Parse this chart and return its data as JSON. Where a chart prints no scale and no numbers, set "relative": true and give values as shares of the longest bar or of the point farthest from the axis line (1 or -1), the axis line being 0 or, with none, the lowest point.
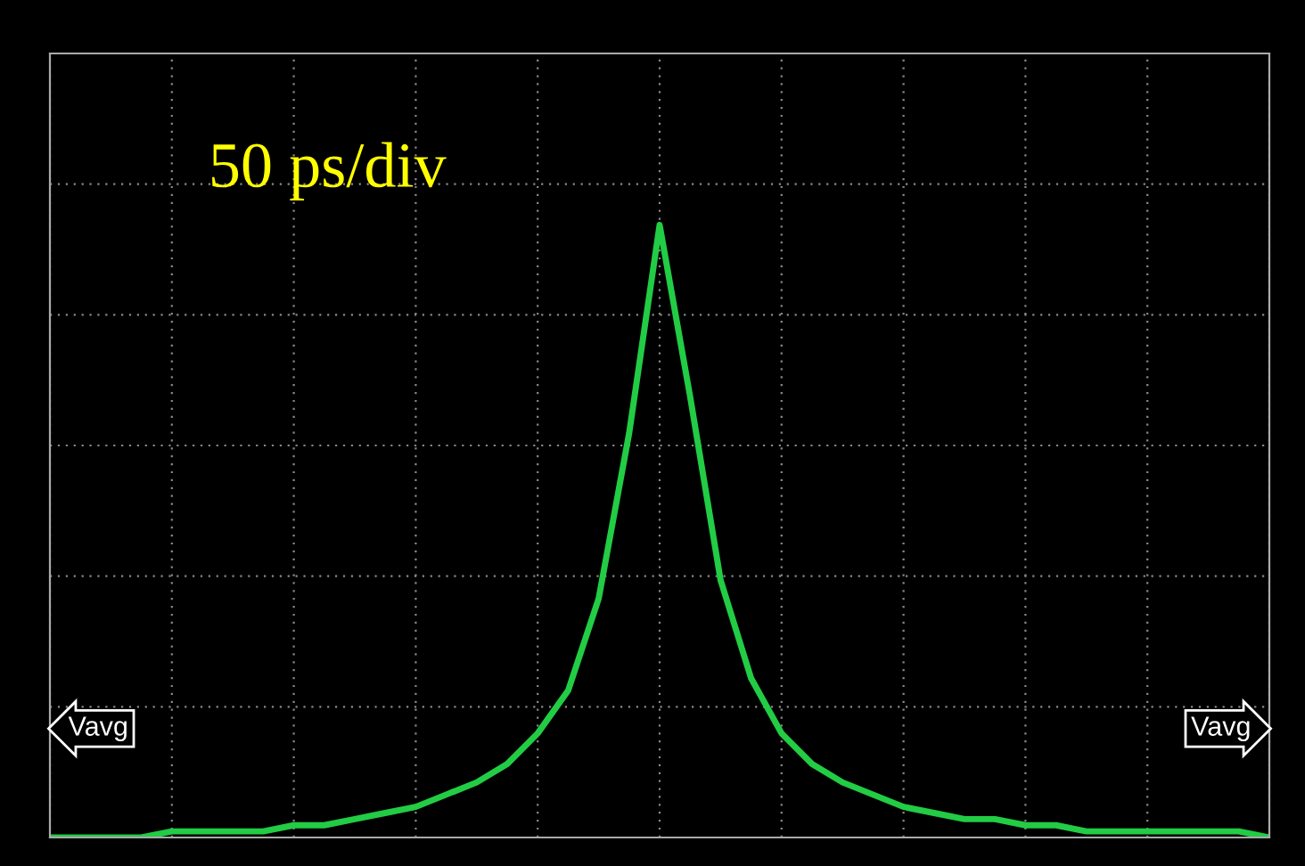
{
  "chart_data": {
    "type": "line",
    "relative": true,
    "grid": true,
    "marker": "none",
    "line_style": "solid",
    "categories": [
      null,
      null,
      null,
      null,
      null,
      null,
      null,
      null,
      null,
      null,
      null,
      null,
      null,
      null,
      null,
      null,
      null,
      null,
      null,
      null,
      null,
      null,
      null,
      null,
      null,
      null,
      null,
      null,
      null,
      null,
      null,
      null,
      null,
      null,
      null,
      null,
      null,
      null,
      null,
      null,
      null
    ],
    "series": [
      {
        "color": "#22cc44",
        "values": [
          0,
          0,
          0,
          0,
          0.01,
          0.01,
          0.01,
          0.01,
          0.02,
          0.02,
          0.03,
          0.04,
          0.05,
          0.07,
          0.09,
          0.12,
          0.17,
          0.24,
          0.39,
          0.66,
          1,
          0.72,
          0.42,
          0.26,
          0.17,
          0.12,
          0.09,
          0.07,
          0.05,
          0.04,
          0.03,
          0.03,
          0.02,
          0.02,
          0.01,
          0.01,
          0.01,
          0.01,
          0.01,
          0.01,
          0
        ]
      }
    ],
    "annotations": [
      "50 ps/div",
      "Vavg",
      "Vavg"
    ]
  }
}
